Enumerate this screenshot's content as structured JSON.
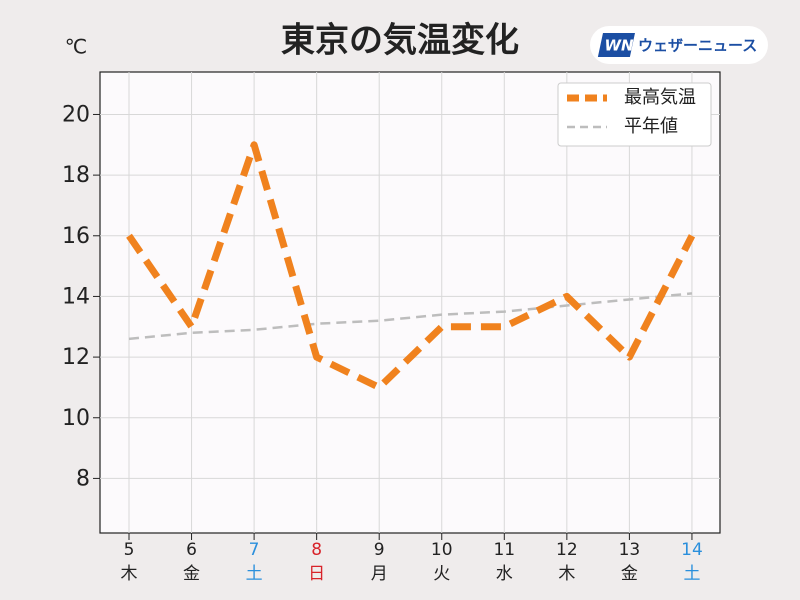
{
  "chart_data": {
    "type": "line",
    "title": "東京の気温変化",
    "y_unit": "℃",
    "logo": {
      "mark": "WN",
      "text": "ウェザーニュース"
    },
    "categories": [
      "5",
      "6",
      "7",
      "8",
      "9",
      "10",
      "11",
      "12",
      "13",
      "14"
    ],
    "weekdays": [
      "木",
      "金",
      "土",
      "日",
      "月",
      "火",
      "水",
      "木",
      "金",
      "土"
    ],
    "category_colors": [
      "#222222",
      "#222222",
      "#2a8fdc",
      "#d8232a",
      "#222222",
      "#222222",
      "#222222",
      "#222222",
      "#222222",
      "#2a8fdc"
    ],
    "series": [
      {
        "name": "最高気温",
        "color": "#f0821e",
        "line_style": "dashed",
        "values": [
          16,
          13,
          19,
          12,
          11,
          13,
          13,
          14,
          12,
          16
        ]
      },
      {
        "name": "平年値",
        "color": "#bdbdbd",
        "line_style": "dashed",
        "values": [
          12.6,
          12.8,
          12.9,
          13.1,
          13.2,
          13.4,
          13.5,
          13.7,
          13.9,
          14.1
        ]
      }
    ],
    "ylim": [
      6.2,
      21.4
    ],
    "yticks": [
      8,
      10,
      12,
      14,
      16,
      18,
      20
    ],
    "grid": true,
    "legend": "upper right"
  }
}
